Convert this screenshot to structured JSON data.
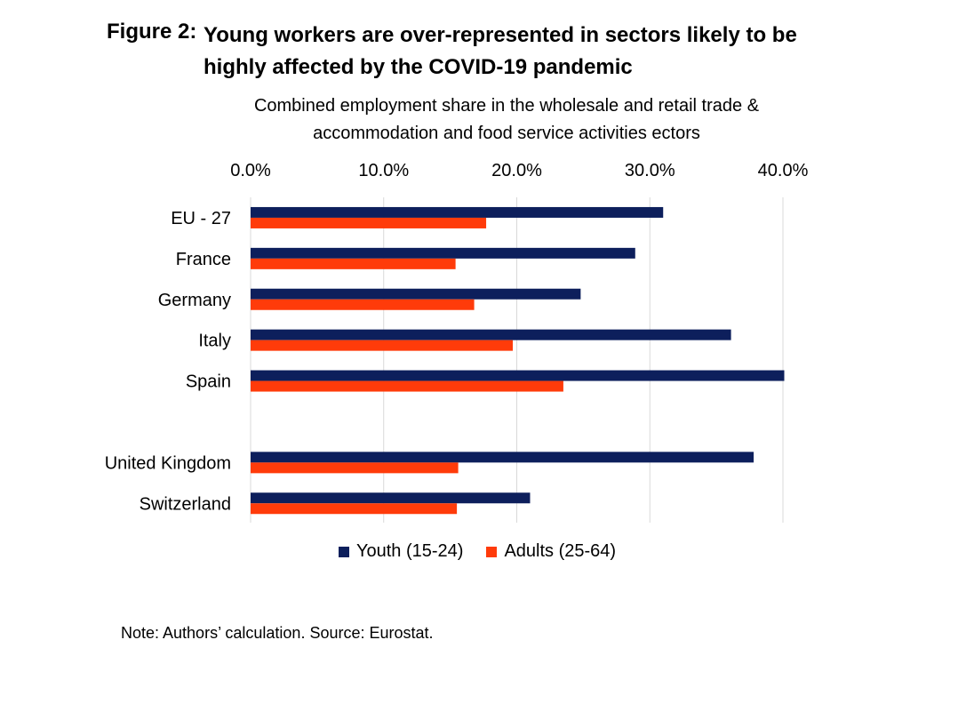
{
  "figure_label": "Figure 2:",
  "chart_data": {
    "type": "bar",
    "orientation": "horizontal",
    "title": "Young workers are over-represented in sectors likely to be highly affected by the COVID-19 pandemic",
    "xlabel": "Combined employment share in the wholesale and retail trade & accommodation and food service activities ectors",
    "xlim": [
      0,
      40
    ],
    "xticks": [
      0,
      10,
      20,
      30,
      40
    ],
    "xtick_labels": [
      "0.0%",
      "10.0%",
      "20.0%",
      "30.0%",
      "40.0%"
    ],
    "x_axis_position": "top",
    "grid": "vertical",
    "legend_position": "bottom",
    "categories": [
      "EU - 27",
      "France",
      "Germany",
      "Italy",
      "Spain",
      "",
      "United Kingdom",
      "Switzerland"
    ],
    "series": [
      {
        "name": "Youth (15-24)",
        "color": "#0d1f5c",
        "values": [
          31.0,
          28.9,
          24.8,
          36.1,
          40.1,
          null,
          37.8,
          21.0
        ]
      },
      {
        "name": "Adults (25-64)",
        "color": "#ff3b0a",
        "values": [
          17.7,
          15.4,
          16.8,
          19.7,
          23.5,
          null,
          15.6,
          15.5
        ]
      }
    ]
  },
  "note": "Note: Authors’ calculation. Source: Eurostat."
}
